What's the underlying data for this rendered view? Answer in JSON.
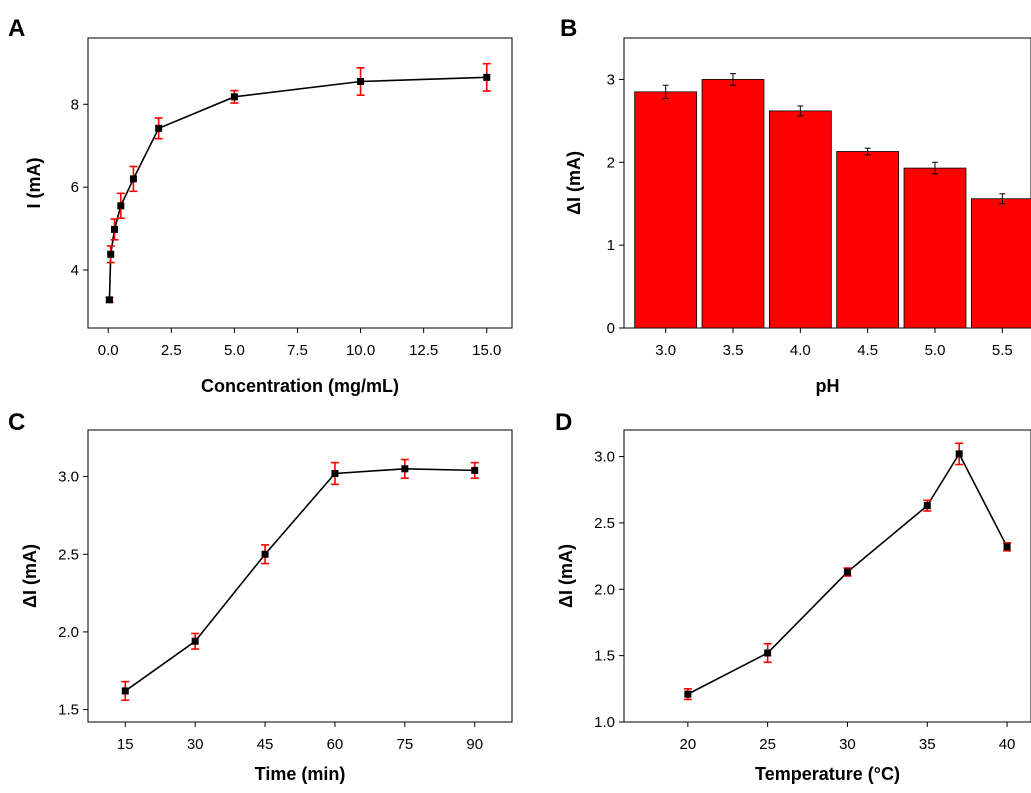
{
  "chart_data": [
    {
      "panel": "A",
      "type": "line",
      "xlabel": "Concentration (mg/mL)",
      "ylabel": "I (mA)",
      "xlim": [
        -0.8,
        16.0
      ],
      "ylim": [
        2.6,
        9.6
      ],
      "xticks": [
        "0.0",
        "2.5",
        "5.0",
        "7.5",
        "10.0",
        "12.5",
        "15.0"
      ],
      "yticks": [
        "4",
        "6",
        "8"
      ],
      "series": [
        {
          "x": [
            0.05,
            0.1,
            0.25,
            0.5,
            1,
            2,
            5,
            10,
            15
          ],
          "y": [
            3.28,
            4.38,
            4.98,
            5.55,
            6.2,
            7.42,
            8.18,
            8.55,
            8.65
          ],
          "err": [
            0.05,
            0.2,
            0.25,
            0.3,
            0.3,
            0.25,
            0.15,
            0.33,
            0.33
          ]
        }
      ]
    },
    {
      "panel": "B",
      "type": "bar",
      "xlabel": "pH",
      "ylabel": "ΔI (mA)",
      "categories": [
        "3.0",
        "3.5",
        "4.0",
        "4.5",
        "5.0",
        "5.5"
      ],
      "ylim": [
        0,
        3.5
      ],
      "yticks": [
        "0",
        "1",
        "2",
        "3"
      ],
      "values": [
        2.85,
        3.0,
        2.62,
        2.13,
        1.93,
        1.56
      ],
      "err": [
        0.08,
        0.07,
        0.06,
        0.04,
        0.07,
        0.06
      ],
      "bar_color": "#ff0000"
    },
    {
      "panel": "C",
      "type": "line",
      "xlabel": "Time (min)",
      "ylabel": "ΔI (mA)",
      "xlim": [
        7,
        98
      ],
      "ylim": [
        1.42,
        3.3
      ],
      "xticks": [
        "15",
        "30",
        "45",
        "60",
        "75",
        "90"
      ],
      "yticks": [
        "1.5",
        "2.0",
        "2.5",
        "3.0"
      ],
      "series": [
        {
          "x": [
            15,
            30,
            45,
            60,
            75,
            90
          ],
          "y": [
            1.62,
            1.94,
            2.5,
            3.02,
            3.05,
            3.04
          ],
          "err": [
            0.06,
            0.05,
            0.06,
            0.07,
            0.06,
            0.05
          ]
        }
      ]
    },
    {
      "panel": "D",
      "type": "line",
      "xlabel": "Temperature (°C)",
      "ylabel": "ΔI (mA)",
      "xlim": [
        16,
        41.5
      ],
      "ylim": [
        1.0,
        3.2
      ],
      "xticks": [
        "20",
        "25",
        "30",
        "35",
        "40"
      ],
      "yticks": [
        "1.0",
        "1.5",
        "2.0",
        "2.5",
        "3.0"
      ],
      "series": [
        {
          "x": [
            20,
            25,
            30,
            35,
            37,
            40
          ],
          "y": [
            1.21,
            1.52,
            2.13,
            2.63,
            3.02,
            2.32
          ],
          "err": [
            0.04,
            0.07,
            0.03,
            0.04,
            0.08,
            0.03
          ]
        }
      ]
    }
  ],
  "colors": {
    "line": "#000000",
    "marker": "#000000",
    "errorbar_line_panels": "#ff0000",
    "errorbar_bar_panel": "#000000",
    "bar_fill": "#ff0000"
  }
}
